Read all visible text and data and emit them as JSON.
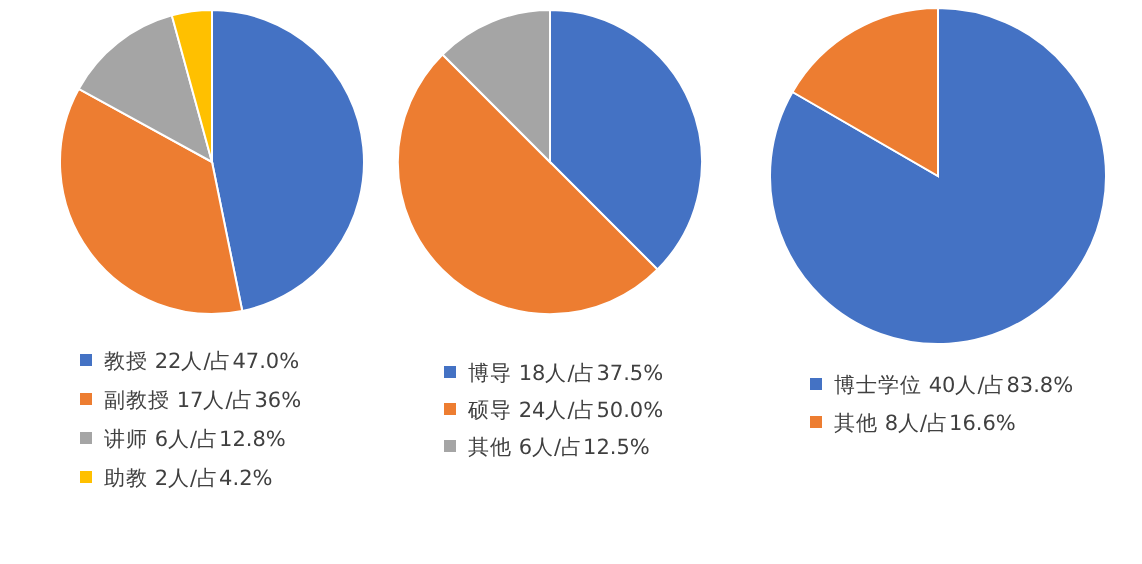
{
  "chart_data": [
    {
      "type": "pie",
      "categories": [
        "教授",
        "副教授",
        "讲师",
        "助教"
      ],
      "values": [
        22,
        17,
        6,
        2
      ],
      "value_labels": [
        "22人/占47.0%",
        "17人/占36%",
        "6人/占12.8%",
        "2人/占4.2%"
      ],
      "colors": [
        "#4472c4",
        "#ed7d31",
        "#a5a5a5",
        "#ffc000"
      ],
      "legend": "bottom"
    },
    {
      "type": "pie",
      "categories": [
        "博导",
        "硕导",
        "其他"
      ],
      "values": [
        18,
        24,
        6
      ],
      "value_labels": [
        "18人/占37.5%",
        "24人/占50.0%",
        "6人/占12.5%"
      ],
      "colors": [
        "#4472c4",
        "#ed7d31",
        "#a5a5a5"
      ],
      "legend": "bottom"
    },
    {
      "type": "pie",
      "categories": [
        "博士学位",
        "其他"
      ],
      "values": [
        40,
        8
      ],
      "value_labels": [
        "40人/占83.8%",
        "8人/占16.6%"
      ],
      "colors": [
        "#4472c4",
        "#ed7d31"
      ],
      "legend": "bottom"
    }
  ]
}
